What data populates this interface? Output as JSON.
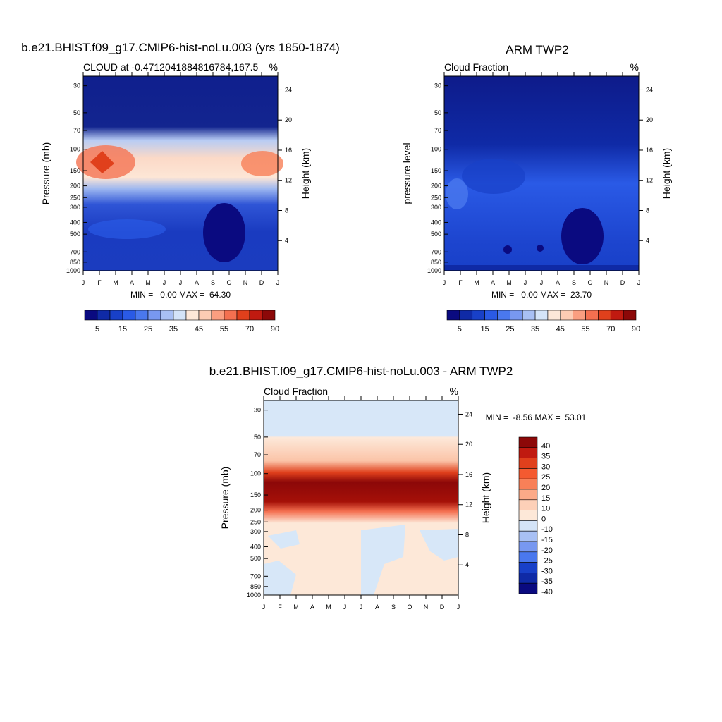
{
  "chart_data": [
    {
      "type": "heatmap",
      "title": "b.e21.BHIST.f09_g17.CMIP6-hist-noLu.003 (yrs 1850-1874)",
      "subtitle_left": "CLOUD at -0.4712041884816784,167.5",
      "subtitle_right": "%",
      "ylabel": "Pressure (mb)",
      "ylabel_right": "Height (km)",
      "x": [
        "J",
        "F",
        "M",
        "A",
        "M",
        "J",
        "J",
        "A",
        "S",
        "O",
        "N",
        "D",
        "J"
      ],
      "y_ticks": [
        30,
        50,
        70,
        100,
        150,
        200,
        250,
        300,
        400,
        500,
        700,
        850,
        1000
      ],
      "y_right_ticks": [
        24,
        20,
        16,
        12,
        8,
        4
      ],
      "ylim": [
        1000,
        25
      ],
      "log_scale": true,
      "stats": "MIN =   0.00 MAX =  64.30",
      "colorbar_levels": [
        5,
        10,
        15,
        20,
        25,
        30,
        35,
        40,
        45,
        50,
        55,
        60,
        70,
        80,
        90
      ],
      "colorbar_labels": [
        "5",
        "15",
        "25",
        "35",
        "45",
        "55",
        "70",
        "90"
      ],
      "colorbar_colors": [
        "#0a0a80",
        "#0f2aa6",
        "#1840c8",
        "#2a5ae6",
        "#4a78ee",
        "#7898f0",
        "#a8c0f4",
        "#d4e4f8",
        "#fde8d8",
        "#fcccb4",
        "#fa9e80",
        "#f47050",
        "#e0401c",
        "#c01a10",
        "#8c0808"
      ],
      "legend_position": "bottom",
      "colormap": "blue-white-red"
    },
    {
      "type": "heatmap",
      "title": "ARM TWP2",
      "subtitle_left": "Cloud Fraction",
      "subtitle_right": "%",
      "ylabel": "pressure level",
      "ylabel_right": "Height (km)",
      "x": [
        "J",
        "F",
        "M",
        "A",
        "M",
        "J",
        "J",
        "A",
        "S",
        "O",
        "N",
        "D",
        "J"
      ],
      "y_ticks": [
        30,
        50,
        70,
        100,
        150,
        200,
        250,
        300,
        400,
        500,
        700,
        850,
        1000
      ],
      "y_right_ticks": [
        24,
        20,
        16,
        12,
        8,
        4
      ],
      "ylim": [
        1000,
        25
      ],
      "log_scale": true,
      "stats": "MIN =   0.00 MAX =  23.70",
      "colorbar_levels": [
        5,
        10,
        15,
        20,
        25,
        30,
        35,
        40,
        45,
        50,
        55,
        60,
        70,
        80,
        90
      ],
      "colorbar_labels": [
        "5",
        "15",
        "25",
        "35",
        "45",
        "55",
        "70",
        "90"
      ],
      "colorbar_colors": [
        "#0a0a80",
        "#0f2aa6",
        "#1840c8",
        "#2a5ae6",
        "#4a78ee",
        "#7898f0",
        "#a8c0f4",
        "#d4e4f8",
        "#fde8d8",
        "#fcccb4",
        "#fa9e80",
        "#f47050",
        "#e0401c",
        "#c01a10",
        "#8c0808"
      ],
      "legend_position": "bottom",
      "colormap": "blue-white-red"
    },
    {
      "type": "heatmap",
      "title": "b.e21.BHIST.f09_g17.CMIP6-hist-noLu.003 - ARM TWP2",
      "subtitle_left": "Cloud Fraction",
      "subtitle_right": "%",
      "ylabel": "Pressure (mb)",
      "ylabel_right": "Height (km)",
      "x": [
        "J",
        "F",
        "M",
        "A",
        "M",
        "J",
        "J",
        "A",
        "S",
        "O",
        "N",
        "D",
        "J"
      ],
      "y_ticks": [
        30,
        50,
        70,
        100,
        150,
        200,
        250,
        300,
        400,
        500,
        700,
        850,
        1000
      ],
      "y_right_ticks": [
        24,
        20,
        16,
        12,
        8,
        4
      ],
      "ylim": [
        1000,
        25
      ],
      "log_scale": true,
      "stats": "MIN =  -8.56 MAX =  53.01",
      "colorbar_levels": [
        40,
        35,
        30,
        25,
        20,
        15,
        10,
        0,
        -10,
        -15,
        -20,
        -25,
        -30,
        -35,
        -40
      ],
      "colorbar_labels": [
        "40",
        "35",
        "30",
        "25",
        "20",
        "15",
        "10",
        "0",
        "-10",
        "-15",
        "-20",
        "-25",
        "-30",
        "-35",
        "-40"
      ],
      "colorbar_colors": [
        "#8c0808",
        "#c01a10",
        "#e0401c",
        "#f45a30",
        "#f88058",
        "#fcaa88",
        "#fdd0b8",
        "#fde8d8",
        "#d4e4f8",
        "#a8c0f4",
        "#7898f0",
        "#4a78ee",
        "#1840c8",
        "#0f2aa6",
        "#0a0a80"
      ],
      "legend_position": "right",
      "colormap": "blue-white-red"
    }
  ]
}
